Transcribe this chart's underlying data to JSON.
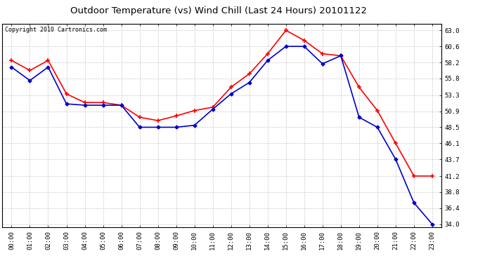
{
  "title": "Outdoor Temperature (vs) Wind Chill (Last 24 Hours) 20101122",
  "copyright": "Copyright 2010 Cartronics.com",
  "x_labels": [
    "00:00",
    "01:00",
    "02:00",
    "03:00",
    "04:00",
    "05:00",
    "06:00",
    "07:00",
    "08:00",
    "09:00",
    "10:00",
    "11:00",
    "12:00",
    "13:00",
    "14:00",
    "15:00",
    "16:00",
    "17:00",
    "18:00",
    "19:00",
    "20:00",
    "21:00",
    "22:00",
    "23:00"
  ],
  "temp_data": [
    58.5,
    57.0,
    58.5,
    53.5,
    52.2,
    52.2,
    51.8,
    50.0,
    49.5,
    50.2,
    51.0,
    51.5,
    54.5,
    56.5,
    59.5,
    63.0,
    61.5,
    59.5,
    59.2,
    54.5,
    51.0,
    46.1,
    41.2,
    41.2
  ],
  "wind_chill_data": [
    57.5,
    55.5,
    57.5,
    52.0,
    51.8,
    51.8,
    51.8,
    48.5,
    48.5,
    48.5,
    48.8,
    51.2,
    53.5,
    55.2,
    58.5,
    60.6,
    60.6,
    58.0,
    59.2,
    50.0,
    48.5,
    43.7,
    37.2,
    34.0
  ],
  "temp_color": "#ff0000",
  "wind_chill_color": "#0000cc",
  "ylim_min": 33.5,
  "ylim_max": 64.0,
  "yticks": [
    34.0,
    36.4,
    38.8,
    41.2,
    43.7,
    46.1,
    48.5,
    50.9,
    53.3,
    55.8,
    58.2,
    60.6,
    63.0
  ],
  "background_color": "#ffffff",
  "grid_color": "#bbbbbb",
  "title_fontsize": 9.5,
  "tick_fontsize": 6.5,
  "copyright_fontsize": 6.0
}
